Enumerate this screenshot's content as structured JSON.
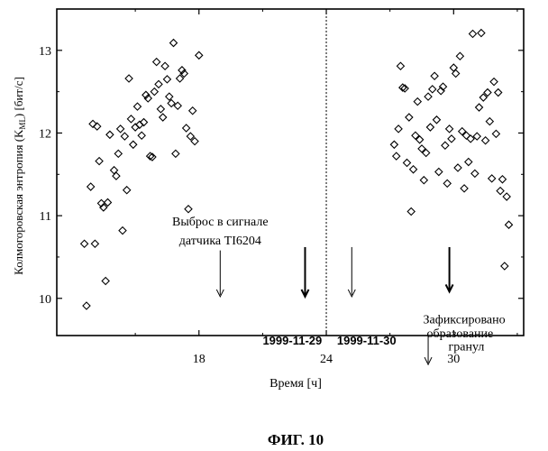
{
  "chart_data": {
    "type": "scatter",
    "xlabel": "Время [ч]",
    "ylabel": "Колмогоровская энтропия (K",
    "ylabel_sub": "ML",
    "ylabel_tail": ") [бит/с]",
    "xlim": [
      11.3,
      33.3
    ],
    "ylim": [
      9.55,
      13.5
    ],
    "xticks": [
      18,
      24,
      30
    ],
    "yticks": [
      10,
      11,
      12,
      13
    ],
    "grid": false,
    "series": [
      {
        "marker": "diamond",
        "points": [
          [
            12.6,
            10.66
          ],
          [
            12.7,
            9.91
          ],
          [
            12.9,
            11.35
          ],
          [
            13.0,
            12.11
          ],
          [
            13.1,
            10.66
          ],
          [
            13.2,
            12.08
          ],
          [
            13.3,
            11.66
          ],
          [
            13.4,
            11.15
          ],
          [
            13.5,
            11.1
          ],
          [
            13.6,
            10.21
          ],
          [
            13.7,
            11.16
          ],
          [
            13.8,
            11.98
          ],
          [
            14.0,
            11.55
          ],
          [
            14.1,
            11.48
          ],
          [
            14.2,
            11.75
          ],
          [
            14.3,
            12.05
          ],
          [
            14.4,
            10.82
          ],
          [
            14.5,
            11.96
          ],
          [
            14.6,
            11.31
          ],
          [
            14.7,
            12.66
          ],
          [
            14.8,
            12.17
          ],
          [
            14.9,
            11.86
          ],
          [
            15.0,
            12.07
          ],
          [
            15.1,
            12.32
          ],
          [
            15.2,
            12.1
          ],
          [
            15.3,
            11.97
          ],
          [
            15.4,
            12.13
          ],
          [
            15.5,
            12.46
          ],
          [
            15.6,
            12.42
          ],
          [
            15.7,
            11.72
          ],
          [
            15.8,
            11.71
          ],
          [
            15.9,
            12.5
          ],
          [
            16.0,
            12.86
          ],
          [
            16.1,
            12.59
          ],
          [
            16.2,
            12.29
          ],
          [
            16.3,
            12.19
          ],
          [
            16.4,
            12.81
          ],
          [
            16.5,
            12.65
          ],
          [
            16.6,
            12.44
          ],
          [
            16.7,
            12.36
          ],
          [
            16.8,
            13.09
          ],
          [
            16.9,
            11.75
          ],
          [
            17.0,
            12.33
          ],
          [
            17.1,
            12.66
          ],
          [
            17.2,
            12.76
          ],
          [
            17.3,
            12.72
          ],
          [
            17.4,
            12.06
          ],
          [
            17.5,
            11.08
          ],
          [
            17.6,
            11.96
          ],
          [
            17.7,
            12.27
          ],
          [
            17.8,
            11.9
          ],
          [
            18.0,
            12.94
          ],
          [
            27.2,
            11.86
          ],
          [
            27.3,
            11.72
          ],
          [
            27.4,
            12.05
          ],
          [
            27.5,
            12.81
          ],
          [
            27.6,
            12.55
          ],
          [
            27.7,
            12.54
          ],
          [
            27.8,
            11.64
          ],
          [
            27.9,
            12.19
          ],
          [
            28.0,
            11.05
          ],
          [
            28.1,
            11.56
          ],
          [
            28.2,
            11.97
          ],
          [
            28.3,
            12.38
          ],
          [
            28.4,
            11.92
          ],
          [
            28.5,
            11.81
          ],
          [
            28.6,
            11.43
          ],
          [
            28.7,
            11.76
          ],
          [
            28.8,
            12.44
          ],
          [
            28.9,
            12.07
          ],
          [
            29.0,
            12.53
          ],
          [
            29.1,
            12.69
          ],
          [
            29.2,
            12.16
          ],
          [
            29.3,
            11.53
          ],
          [
            29.4,
            12.51
          ],
          [
            29.5,
            12.56
          ],
          [
            29.6,
            11.85
          ],
          [
            29.7,
            11.39
          ],
          [
            29.8,
            12.05
          ],
          [
            29.9,
            11.93
          ],
          [
            30.0,
            12.79
          ],
          [
            30.1,
            12.72
          ],
          [
            30.2,
            11.58
          ],
          [
            30.3,
            12.93
          ],
          [
            30.4,
            12.02
          ],
          [
            30.5,
            11.33
          ],
          [
            30.6,
            11.97
          ],
          [
            30.7,
            11.65
          ],
          [
            30.8,
            11.93
          ],
          [
            30.9,
            13.2
          ],
          [
            31.0,
            11.51
          ],
          [
            31.1,
            11.96
          ],
          [
            31.2,
            12.31
          ],
          [
            31.3,
            13.21
          ],
          [
            31.4,
            12.43
          ],
          [
            31.5,
            11.91
          ],
          [
            31.6,
            12.49
          ],
          [
            31.7,
            12.14
          ],
          [
            31.8,
            11.45
          ],
          [
            31.9,
            12.62
          ],
          [
            32.0,
            11.99
          ],
          [
            32.1,
            12.49
          ],
          [
            32.2,
            11.3
          ],
          [
            32.3,
            11.44
          ],
          [
            32.4,
            10.39
          ],
          [
            32.5,
            11.23
          ],
          [
            32.6,
            10.89
          ]
        ]
      }
    ],
    "divider_x": 24,
    "annotations": [
      {
        "text": "Выброс в сигнале",
        "x": 19.0,
        "y": 10.88
      },
      {
        "text": "датчика TI6204",
        "x": 19.0,
        "y": 10.65
      },
      {
        "text": "1999-11-29",
        "x": 22.4,
        "y": 9.44
      },
      {
        "text": "1999-11-30",
        "x": 25.9,
        "y": 9.44
      },
      {
        "text": "Зафиксировано",
        "x": 30.5,
        "y": 9.7
      },
      {
        "text": "образование",
        "x": 30.3,
        "y": 9.53
      },
      {
        "text": "гранул",
        "x": 30.6,
        "y": 9.37
      }
    ],
    "arrows": [
      {
        "x": 19.0,
        "y_from": 10.58,
        "y_to": 10.02,
        "weight": "thin"
      },
      {
        "x": 23.0,
        "y_from": 10.62,
        "y_to": 10.02,
        "weight": "bold"
      },
      {
        "x": 25.2,
        "y_from": 10.62,
        "y_to": 10.02,
        "weight": "thin"
      },
      {
        "x": 29.8,
        "y_from": 10.62,
        "y_to": 10.08,
        "weight": "bold"
      },
      {
        "x": 28.8,
        "y_from": 9.55,
        "y_to": 9.2,
        "weight": "thin"
      }
    ]
  },
  "figure_caption": "ФИГ. 10"
}
